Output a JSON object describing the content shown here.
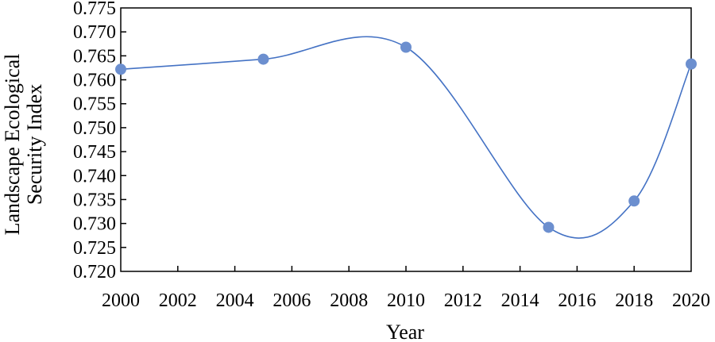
{
  "chart_data": {
    "type": "line",
    "title": "",
    "xlabel": "Year",
    "ylabel_lines": [
      "Landscape Ecological",
      "Security Index"
    ],
    "xlim": [
      2000,
      2020
    ],
    "ylim": [
      0.72,
      0.775
    ],
    "x_ticks": [
      "2000",
      "2002",
      "2004",
      "2006",
      "2008",
      "2010",
      "2012",
      "2014",
      "2016",
      "2018",
      "2020"
    ],
    "y_ticks": [
      "0.775",
      "0.770",
      "0.765",
      "0.760",
      "0.755",
      "0.750",
      "0.745",
      "0.740",
      "0.735",
      "0.730",
      "0.725",
      "0.720"
    ],
    "grid": false,
    "smooth": true,
    "series": [
      {
        "color": "#4472C4",
        "marker_color": "#6C8FCF",
        "x": [
          2000,
          2005,
          2010,
          2015,
          2018,
          2020
        ],
        "y": [
          0.7622,
          0.7643,
          0.7668,
          0.7292,
          0.7347,
          0.7633
        ]
      }
    ]
  }
}
